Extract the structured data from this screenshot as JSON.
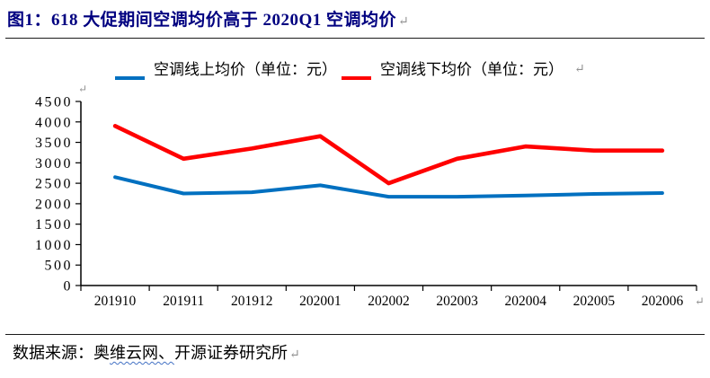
{
  "title": {
    "text": "图1：618 大促期间空调均价高于 2020Q1 空调均价",
    "paragraph_mark": "↵"
  },
  "legend": {
    "online_label": "空调线上均价（单位：元）",
    "offline_label": "空调线下均价（单位：元）",
    "paragraph_mark": "↵"
  },
  "chart_data": {
    "type": "line",
    "categories": [
      "201910",
      "201911",
      "201912",
      "202001",
      "202002",
      "202003",
      "202004",
      "202005",
      "202006"
    ],
    "series": [
      {
        "name": "空调线上均价（单位：元）",
        "color": "#0070C0",
        "values": [
          2650,
          2250,
          2280,
          2450,
          2170,
          2170,
          2200,
          2240,
          2260
        ]
      },
      {
        "name": "空调线下均价（单位：元）",
        "color": "#FF0000",
        "values": [
          3900,
          3100,
          3350,
          3650,
          2500,
          3100,
          3400,
          3300,
          3300
        ]
      }
    ],
    "title": "618 大促期间空调均价高于 2020Q1 空调均价",
    "xlabel": "",
    "ylabel": "",
    "ylim": [
      0,
      4500
    ],
    "ytick_step": 500,
    "grid": false,
    "legend_position": "top",
    "axis_color": "#000000",
    "paragraph_mark": "↵"
  },
  "footer": {
    "prefix": "数据来源：奥",
    "squiggle": "维云网、",
    "suffix": "开源证券研究所",
    "paragraph_mark": "↵"
  }
}
